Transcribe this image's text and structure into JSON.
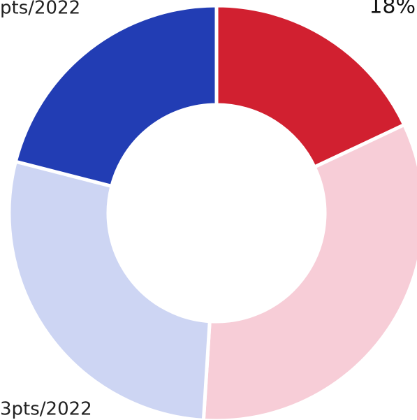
{
  "chart_data": {
    "type": "donut",
    "values": [
      18,
      33,
      28,
      21
    ],
    "value_labels": [
      "18%",
      null,
      null,
      null
    ],
    "colors": [
      "#d12030",
      "#f7cdd7",
      "#cdd5f3",
      "#223db4"
    ],
    "annotations": [
      "pts/2022",
      "3pts/2022"
    ]
  }
}
